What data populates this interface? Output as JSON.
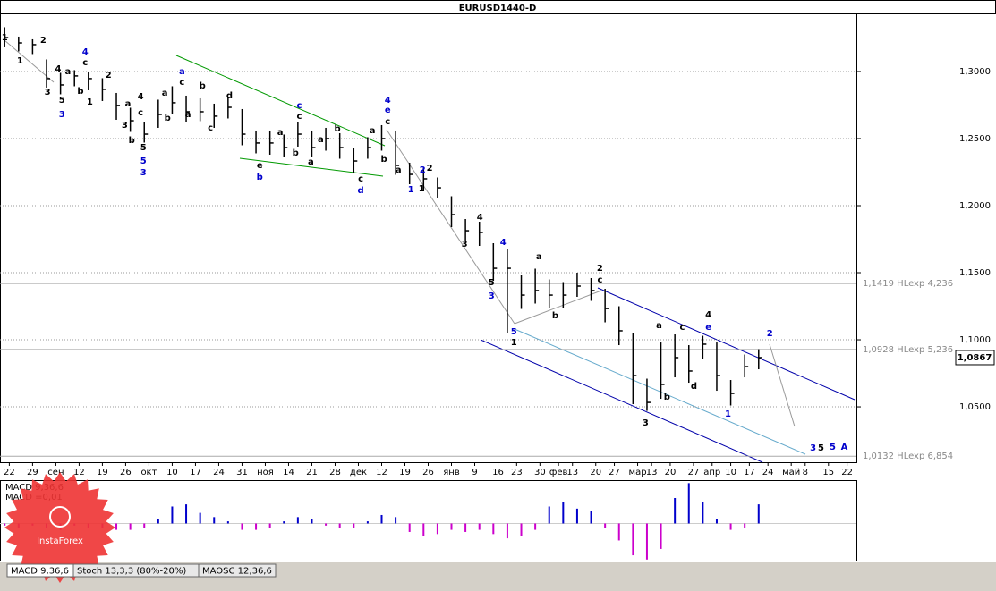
{
  "chart_data": [
    {
      "type": "hlc",
      "title": "EURUSD1440-D",
      "color": "#000000",
      "grid": true,
      "x": [
        0,
        3,
        6,
        9,
        12,
        15,
        18,
        21,
        24,
        27,
        30,
        33,
        36,
        39,
        42,
        45,
        48,
        51,
        54,
        57,
        60,
        63,
        66,
        69,
        72,
        75,
        78,
        81,
        84,
        87,
        90,
        93,
        96,
        99,
        102,
        105,
        108,
        111,
        114,
        117,
        120,
        123,
        126,
        129,
        132,
        135,
        138,
        141,
        144,
        147,
        150,
        153,
        156,
        159,
        162
      ],
      "high": [
        1.333,
        1.326,
        1.324,
        1.309,
        1.299,
        1.301,
        1.3,
        1.295,
        1.284,
        1.273,
        1.262,
        1.279,
        1.289,
        1.282,
        1.28,
        1.276,
        1.281,
        1.272,
        1.256,
        1.256,
        1.253,
        1.262,
        1.256,
        1.258,
        1.254,
        1.243,
        1.251,
        1.26,
        1.256,
        1.232,
        1.228,
        1.221,
        1.207,
        1.19,
        1.188,
        1.172,
        1.168,
        1.148,
        1.153,
        1.145,
        1.143,
        1.15,
        1.146,
        1.138,
        1.125,
        1.105,
        1.071,
        1.098,
        1.104,
        1.096,
        1.103,
        1.098,
        1.07,
        1.089,
        1.093
      ],
      "low": [
        1.318,
        1.315,
        1.313,
        1.288,
        1.283,
        1.289,
        1.286,
        1.278,
        1.264,
        1.255,
        1.247,
        1.258,
        1.268,
        1.262,
        1.263,
        1.258,
        1.265,
        1.245,
        1.239,
        1.238,
        1.236,
        1.244,
        1.236,
        1.241,
        1.235,
        1.224,
        1.235,
        1.241,
        1.223,
        1.216,
        1.212,
        1.206,
        1.184,
        1.173,
        1.17,
        1.144,
        1.105,
        1.123,
        1.127,
        1.124,
        1.124,
        1.132,
        1.129,
        1.113,
        1.096,
        1.052,
        1.047,
        1.056,
        1.072,
        1.068,
        1.086,
        1.062,
        1.051,
        1.072,
        1.078
      ],
      "close": [
        1.3253,
        1.3213,
        1.32,
        1.2947,
        1.29,
        1.2967,
        1.2947,
        1.2867,
        1.2747,
        1.2633,
        1.2533,
        1.268,
        1.2767,
        1.27,
        1.27,
        1.2667,
        1.2733,
        1.2533,
        1.2467,
        1.2467,
        1.2433,
        1.2533,
        1.2433,
        1.25,
        1.2433,
        1.2333,
        1.2433,
        1.25,
        1.23,
        1.2233,
        1.22,
        1.2133,
        1.1933,
        1.1813,
        1.18,
        1.1533,
        1.1533,
        1.1333,
        1.1367,
        1.1333,
        1.1333,
        1.14,
        1.1367,
        1.1233,
        1.1067,
        1.0733,
        1.0533,
        1.0667,
        1.0867,
        1.0767,
        1.0967,
        1.0733,
        1.06,
        1.08,
        1.0867
      ],
      "xlim": [
        -1,
        183
      ],
      "xticks": [
        {
          "value": 1,
          "label": "22"
        },
        {
          "value": 6,
          "label": "29"
        },
        {
          "value": 11,
          "label": "сен"
        },
        {
          "value": 16,
          "label": "12"
        },
        {
          "value": 21,
          "label": "19"
        },
        {
          "value": 26,
          "label": "26"
        },
        {
          "value": 31,
          "label": "окт"
        },
        {
          "value": 36,
          "label": "10"
        },
        {
          "value": 41,
          "label": "17"
        },
        {
          "value": 46,
          "label": "24"
        },
        {
          "value": 51,
          "label": "31"
        },
        {
          "value": 56,
          "label": "ноя"
        },
        {
          "value": 61,
          "label": "14"
        },
        {
          "value": 66,
          "label": "21"
        },
        {
          "value": 71,
          "label": "28"
        },
        {
          "value": 76,
          "label": "дек"
        },
        {
          "value": 81,
          "label": "12"
        },
        {
          "value": 86,
          "label": "19"
        },
        {
          "value": 91,
          "label": "26"
        },
        {
          "value": 96,
          "label": "янв"
        },
        {
          "value": 101,
          "label": "9"
        },
        {
          "value": 106,
          "label": "16"
        },
        {
          "value": 110,
          "label": "23"
        },
        {
          "value": 115,
          "label": "30"
        },
        {
          "value": 119,
          "label": "фев"
        },
        {
          "value": 122,
          "label": "13"
        },
        {
          "value": 127,
          "label": "20"
        },
        {
          "value": 131,
          "label": "27"
        },
        {
          "value": 136,
          "label": "мар"
        },
        {
          "value": 139,
          "label": "13"
        },
        {
          "value": 143,
          "label": "20"
        },
        {
          "value": 148,
          "label": "27"
        },
        {
          "value": 152,
          "label": "апр"
        },
        {
          "value": 156,
          "label": "10"
        },
        {
          "value": 160,
          "label": "17"
        },
        {
          "value": 164,
          "label": "24"
        },
        {
          "value": 169,
          "label": "май"
        },
        {
          "value": 172,
          "label": "8"
        },
        {
          "value": 177,
          "label": "15"
        },
        {
          "value": 181,
          "label": "22"
        }
      ],
      "ylim": [
        1.0087,
        1.3433
      ],
      "yticks": [
        {
          "value": 1.05,
          "label": "1,0500"
        },
        {
          "value": 1.1,
          "label": "1,1000"
        },
        {
          "value": 1.15,
          "label": "1,1500"
        },
        {
          "value": 1.2,
          "label": "1,2000"
        },
        {
          "value": 1.25,
          "label": "1,2500"
        },
        {
          "value": 1.3,
          "label": "1,3000"
        }
      ],
      "levels": [
        {
          "value": 1.1419,
          "label": "1,1419 HLexp 4,236"
        },
        {
          "value": 1.0928,
          "label": "1,0928 HLexp 5,236"
        },
        {
          "value": 1.0132,
          "label": "1,0132 HLexp 6,854"
        }
      ],
      "last_price": {
        "value": 1.0867,
        "label": "1,0867"
      },
      "annotations": [
        {
          "text": "1",
          "x": 0,
          "y": 1.3253,
          "color": "#000000",
          "bold": false
        },
        {
          "text": "1",
          "x": 3.3,
          "y": 1.308,
          "color": "#000000",
          "bold": false
        },
        {
          "text": "2",
          "x": 8.3,
          "y": 1.3233,
          "color": "#000000",
          "bold": false
        },
        {
          "text": "4",
          "x": 11.5,
          "y": 1.302,
          "color": "#000000",
          "bold": false
        },
        {
          "text": "a",
          "x": 13.6,
          "y": 1.3,
          "color": "#000000",
          "bold": false
        },
        {
          "text": "4",
          "x": 17.3,
          "y": 1.3147,
          "color": "#0000cc",
          "bold": false
        },
        {
          "text": "c",
          "x": 17.3,
          "y": 1.3067,
          "color": "#000000",
          "bold": false
        },
        {
          "text": "3",
          "x": 9.2,
          "y": 1.2847,
          "color": "#000000",
          "bold": false
        },
        {
          "text": "5",
          "x": 12.3,
          "y": 1.2787,
          "color": "#000000",
          "bold": false
        },
        {
          "text": "3",
          "x": 12.3,
          "y": 1.268,
          "color": "#0000cc",
          "bold": false
        },
        {
          "text": "b",
          "x": 16.3,
          "y": 1.2853,
          "color": "#000000",
          "bold": false
        },
        {
          "text": "1",
          "x": 18.3,
          "y": 1.2773,
          "color": "#000000",
          "bold": false
        },
        {
          "text": "2",
          "x": 22.3,
          "y": 1.2973,
          "color": "#000000",
          "bold": false
        },
        {
          "text": "a",
          "x": 26.5,
          "y": 1.276,
          "color": "#000000",
          "bold": false
        },
        {
          "text": "4",
          "x": 29.2,
          "y": 1.2813,
          "color": "#000000",
          "bold": false
        },
        {
          "text": "c",
          "x": 29.2,
          "y": 1.2693,
          "color": "#000000",
          "bold": false
        },
        {
          "text": "3",
          "x": 25.8,
          "y": 1.26,
          "color": "#000000",
          "bold": false
        },
        {
          "text": "b",
          "x": 27.3,
          "y": 1.2487,
          "color": "#000000",
          "bold": false
        },
        {
          "text": "5",
          "x": 29.8,
          "y": 1.2433,
          "color": "#000000",
          "bold": false
        },
        {
          "text": "5",
          "x": 29.8,
          "y": 1.2333,
          "color": "#0000cc",
          "bold": false
        },
        {
          "text": "3",
          "x": 29.8,
          "y": 1.2247,
          "color": "#0000cc",
          "bold": true
        },
        {
          "text": "a",
          "x": 34.4,
          "y": 1.284,
          "color": "#000000",
          "bold": false
        },
        {
          "text": "a",
          "x": 38.1,
          "y": 1.3,
          "color": "#0000cc",
          "bold": false
        },
        {
          "text": "c",
          "x": 38.1,
          "y": 1.292,
          "color": "#000000",
          "bold": false
        },
        {
          "text": "b",
          "x": 42.5,
          "y": 1.2893,
          "color": "#000000",
          "bold": false
        },
        {
          "text": "a",
          "x": 39.4,
          "y": 1.268,
          "color": "#000000",
          "bold": false
        },
        {
          "text": "b",
          "x": 35,
          "y": 1.2653,
          "color": "#000000",
          "bold": false
        },
        {
          "text": "c",
          "x": 44.2,
          "y": 1.258,
          "color": "#000000",
          "bold": false
        },
        {
          "text": "d",
          "x": 48.3,
          "y": 1.282,
          "color": "#000000",
          "bold": false
        },
        {
          "text": "c",
          "x": 63.3,
          "y": 1.2747,
          "color": "#0000cc",
          "bold": false
        },
        {
          "text": "c",
          "x": 63.3,
          "y": 1.2667,
          "color": "#000000",
          "bold": false
        },
        {
          "text": "b",
          "x": 71.5,
          "y": 1.2573,
          "color": "#000000",
          "bold": false
        },
        {
          "text": "a",
          "x": 59.2,
          "y": 1.2547,
          "color": "#000000",
          "bold": false
        },
        {
          "text": "a",
          "x": 67.9,
          "y": 1.2493,
          "color": "#000000",
          "bold": false
        },
        {
          "text": "b",
          "x": 62.5,
          "y": 1.2393,
          "color": "#000000",
          "bold": false
        },
        {
          "text": "a",
          "x": 65.8,
          "y": 1.2327,
          "color": "#000000",
          "bold": false
        },
        {
          "text": "e",
          "x": 54.8,
          "y": 1.23,
          "color": "#000000",
          "bold": false
        },
        {
          "text": "b",
          "x": 54.8,
          "y": 1.2213,
          "color": "#0000cc",
          "bold": false
        },
        {
          "text": "c",
          "x": 76.5,
          "y": 1.22,
          "color": "#000000",
          "bold": false
        },
        {
          "text": "d",
          "x": 76.5,
          "y": 1.2113,
          "color": "#0000cc",
          "bold": false
        },
        {
          "text": "a",
          "x": 79,
          "y": 1.256,
          "color": "#000000",
          "bold": false
        },
        {
          "text": "4",
          "x": 82.3,
          "y": 1.2787,
          "color": "#0000cc",
          "bold": true
        },
        {
          "text": "e",
          "x": 82.3,
          "y": 1.2713,
          "color": "#0000cc",
          "bold": false
        },
        {
          "text": "c",
          "x": 82.3,
          "y": 1.2627,
          "color": "#000000",
          "bold": false
        },
        {
          "text": "b",
          "x": 81.5,
          "y": 1.2347,
          "color": "#000000",
          "bold": false
        },
        {
          "text": "a",
          "x": 84.6,
          "y": 1.2267,
          "color": "#000000",
          "bold": false
        },
        {
          "text": "2",
          "x": 89.8,
          "y": 1.2267,
          "color": "#0000cc",
          "bold": false
        },
        {
          "text": "2",
          "x": 91.3,
          "y": 1.228,
          "color": "#000000",
          "bold": false
        },
        {
          "text": "1",
          "x": 87.3,
          "y": 1.212,
          "color": "#0000cc",
          "bold": false
        },
        {
          "text": "1",
          "x": 89.6,
          "y": 1.2127,
          "color": "#000000",
          "bold": false
        },
        {
          "text": "4",
          "x": 102.1,
          "y": 1.1913,
          "color": "#000000",
          "bold": false
        },
        {
          "text": "3",
          "x": 98.8,
          "y": 1.1713,
          "color": "#000000",
          "bold": false
        },
        {
          "text": "4",
          "x": 107.1,
          "y": 1.1727,
          "color": "#0000cc",
          "bold": false
        },
        {
          "text": "5",
          "x": 104.6,
          "y": 1.1427,
          "color": "#000000",
          "bold": false
        },
        {
          "text": "3",
          "x": 104.6,
          "y": 1.1327,
          "color": "#0000cc",
          "bold": false
        },
        {
          "text": "5",
          "x": 109.4,
          "y": 1.106,
          "color": "#0000cc",
          "bold": false
        },
        {
          "text": "1",
          "x": 109.4,
          "y": 1.098,
          "color": "#000000",
          "bold": false
        },
        {
          "text": "a",
          "x": 114.8,
          "y": 1.162,
          "color": "#000000",
          "bold": false
        },
        {
          "text": "b",
          "x": 118.3,
          "y": 1.118,
          "color": "#000000",
          "bold": false
        },
        {
          "text": "2",
          "x": 127.9,
          "y": 1.1533,
          "color": "#000000",
          "bold": false
        },
        {
          "text": "c",
          "x": 127.9,
          "y": 1.1447,
          "color": "#000000",
          "bold": false
        },
        {
          "text": "a",
          "x": 140.6,
          "y": 1.1107,
          "color": "#000000",
          "bold": false
        },
        {
          "text": "b",
          "x": 142.3,
          "y": 1.0573,
          "color": "#000000",
          "bold": false
        },
        {
          "text": "3",
          "x": 137.7,
          "y": 1.038,
          "color": "#000000",
          "bold": false
        },
        {
          "text": "c",
          "x": 145.6,
          "y": 1.1093,
          "color": "#000000",
          "bold": false
        },
        {
          "text": "d",
          "x": 148.1,
          "y": 1.0653,
          "color": "#000000",
          "bold": false
        },
        {
          "text": "4",
          "x": 151.2,
          "y": 1.1187,
          "color": "#000000",
          "bold": false
        },
        {
          "text": "e",
          "x": 151.2,
          "y": 1.1093,
          "color": "#0000cc",
          "bold": false
        },
        {
          "text": "1",
          "x": 155.4,
          "y": 1.0447,
          "color": "#0000cc",
          "bold": false
        },
        {
          "text": "2",
          "x": 164.4,
          "y": 1.1047,
          "color": "#0000cc",
          "bold": false
        },
        {
          "text": "3",
          "x": 173.7,
          "y": 1.0193,
          "color": "#0000cc",
          "bold": false
        },
        {
          "text": "5",
          "x": 175.4,
          "y": 1.0193,
          "color": "#000000",
          "bold": false
        },
        {
          "text": "5",
          "x": 177.9,
          "y": 1.02,
          "color": "#0000cc",
          "bold": true
        },
        {
          "text": "A",
          "x": 180.4,
          "y": 1.02,
          "color": "#0000cc",
          "bold": true
        }
      ]
    },
    {
      "type": "macd_histogram",
      "labels": [
        "MACD 9,36,6",
        "MACD =0,01"
      ],
      "positive_color": "#0000cc",
      "negative_color": "#cc00cc",
      "x": [
        0,
        3,
        6,
        9,
        12,
        15,
        18,
        21,
        24,
        27,
        30,
        33,
        36,
        39,
        42,
        45,
        48,
        51,
        54,
        57,
        60,
        63,
        66,
        69,
        72,
        75,
        78,
        81,
        84,
        87,
        90,
        93,
        96,
        99,
        102,
        105,
        108,
        111,
        114,
        117,
        120,
        123,
        126,
        129,
        132,
        135,
        138,
        141,
        144,
        147,
        150,
        153,
        156,
        159,
        162
      ],
      "values": [
        -0.001,
        -0.002,
        -0.001,
        -0.002,
        -0.003,
        -0.001,
        -0.002,
        -0.002,
        -0.003,
        -0.003,
        -0.002,
        0.002,
        0.008,
        0.009,
        0.005,
        0.003,
        0.001,
        -0.003,
        -0.003,
        -0.002,
        0.001,
        0.003,
        0.002,
        -0.001,
        -0.002,
        -0.002,
        0.001,
        0.004,
        0.003,
        -0.004,
        -0.006,
        -0.005,
        -0.003,
        -0.004,
        -0.003,
        -0.005,
        -0.007,
        -0.006,
        -0.003,
        0.008,
        0.01,
        0.007,
        0.006,
        -0.002,
        -0.008,
        -0.015,
        -0.017,
        -0.012,
        0.012,
        0.019,
        0.01,
        0.002,
        -0.003,
        -0.002,
        0.009
      ],
      "xlim": [
        -1,
        183
      ],
      "ylim": [
        -0.0175,
        0.02
      ]
    }
  ],
  "tabs": [
    "MACD 9,36,6",
    "Stoch 13,3,3 (80%-20%)",
    "MAOSC 12,36,6"
  ],
  "logo": "InstaForex"
}
